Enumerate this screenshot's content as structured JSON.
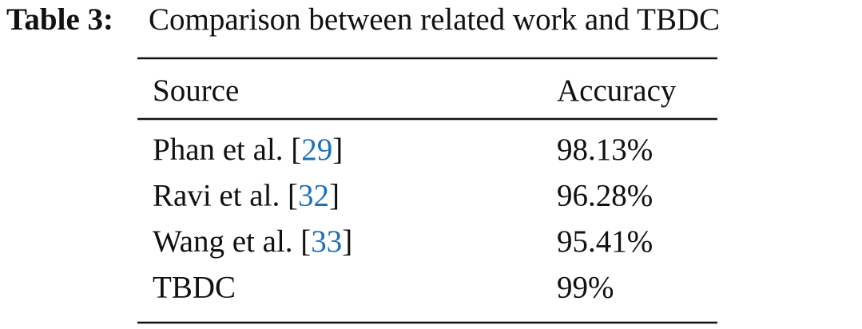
{
  "caption": {
    "label": "Table 3:",
    "text": "Comparison between related work and TBDC"
  },
  "table": {
    "header": [
      "Source",
      "Accuracy"
    ],
    "rows": [
      [
        [
          "Phan et al. [",
          "29",
          "]"
        ],
        "98.13%"
      ],
      [
        [
          "Ravi et al. [",
          "32",
          "]"
        ],
        "96.28%"
      ],
      [
        [
          "Wang et al. [",
          "33",
          "]"
        ],
        "95.41%"
      ],
      [
        [
          "TBDC"
        ],
        "99%"
      ]
    ]
  }
}
